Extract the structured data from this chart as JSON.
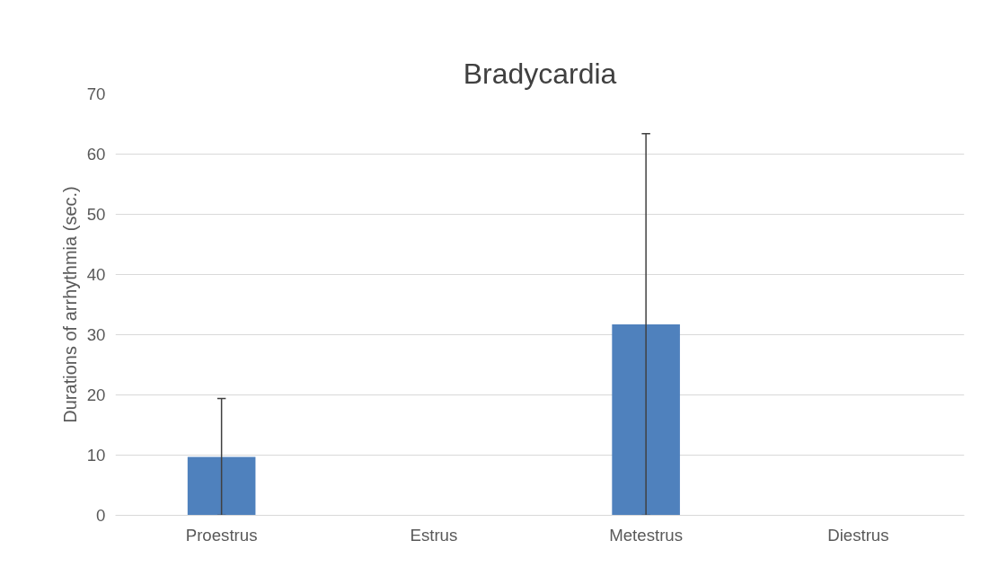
{
  "chart_data": {
    "type": "bar",
    "title": "Bradycardia",
    "ylabel": "Durations of arrhythmia (sec.)",
    "categories": [
      "Proestrus",
      "Estrus",
      "Metestrus",
      "Diestrus"
    ],
    "values": [
      9.7,
      0,
      31.7,
      0
    ],
    "errors": [
      [
        0,
        19.4
      ],
      null,
      [
        0,
        63.4
      ],
      null
    ],
    "color": "#4f81bd",
    "ylim": [
      0,
      70
    ],
    "yticks": [
      0,
      10,
      20,
      30,
      40,
      50,
      60,
      70
    ],
    "grid": "y"
  }
}
